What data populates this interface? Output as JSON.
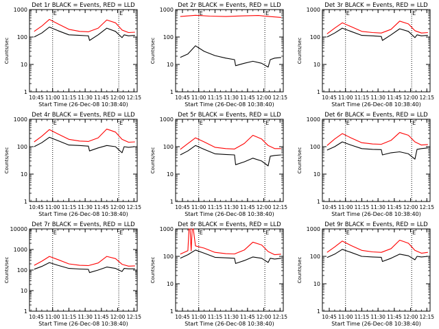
{
  "chart_data": [
    {
      "type": "line",
      "title": "Det 1r BLACK = Events, RED = LLD",
      "ylabel": "Counts/sec",
      "xlabel": "Start Time (26-Dec-08 10:38:40)",
      "x_ticks": [
        "10:45",
        "11:00",
        "11:15",
        "11:30",
        "11:45",
        "12:00",
        "12:15"
      ],
      "y_ticks": [
        "1",
        "10",
        "100",
        "1000"
      ],
      "yscale": "log",
      "ylim": [
        1,
        1000
      ],
      "xlim": [
        "10:38:40",
        "12:18"
      ],
      "markers": [
        "11:00",
        "12:01"
      ],
      "marker_labels": [
        "E",
        "E"
      ],
      "series": [
        {
          "color": "#000000",
          "x": [
            "10:43",
            "10:50",
            "10:57",
            "11:05",
            "11:15",
            "11:25",
            "11:33",
            "11:34",
            "11:42",
            "11:50",
            "11:58",
            "12:04",
            "12:06",
            "12:10",
            "12:16"
          ],
          "values": [
            100,
            140,
            230,
            170,
            120,
            115,
            110,
            75,
            120,
            210,
            160,
            95,
            120,
            110,
            115
          ]
        },
        {
          "color": "#ff0000",
          "x": [
            "10:43",
            "10:50",
            "10:57",
            "11:05",
            "11:15",
            "11:25",
            "11:33",
            "11:42",
            "11:50",
            "11:58",
            "12:04",
            "12:10",
            "12:16"
          ],
          "values": [
            160,
            250,
            440,
            300,
            190,
            160,
            155,
            210,
            420,
            330,
            180,
            145,
            150
          ]
        }
      ]
    },
    {
      "type": "line",
      "title": "Det 2r BLACK = Events, RED = LLD",
      "ylabel": "Counts/sec",
      "xlabel": "Start Time (26-Dec-08 10:38:40)",
      "x_ticks": [
        "10:45",
        "11:00",
        "11:15",
        "11:30",
        "11:45",
        "12:00",
        "12:15"
      ],
      "y_ticks": [
        "1",
        "10",
        "100",
        "1000"
      ],
      "yscale": "log",
      "ylim": [
        1,
        1000
      ],
      "xlim": [
        "10:38:40",
        "12:18"
      ],
      "markers": [
        "11:00",
        "12:01"
      ],
      "marker_labels": [
        "E",
        "E"
      ],
      "series": [
        {
          "color": "#000000",
          "x": [
            "10:43",
            "10:50",
            "10:57",
            "11:05",
            "11:15",
            "11:25",
            "11:33",
            "11:34",
            "11:42",
            "11:50",
            "11:58",
            "12:04",
            "12:06",
            "12:10",
            "12:16"
          ],
          "values": [
            18,
            24,
            48,
            30,
            21,
            17,
            15,
            9,
            11,
            13,
            11,
            8,
            15,
            17,
            18
          ]
        },
        {
          "color": "#ff0000",
          "x": [
            "10:43",
            "10:57",
            "11:10",
            "11:25",
            "11:40",
            "11:55",
            "12:05",
            "12:16"
          ],
          "values": [
            560,
            620,
            580,
            560,
            590,
            610,
            560,
            520
          ]
        }
      ]
    },
    {
      "type": "line",
      "title": "Det 3r BLACK = Events, RED = LLD",
      "ylabel": "Counts/sec",
      "xlabel": "Start Time (26-Dec-08 10:38:40)",
      "x_ticks": [
        "10:45",
        "11:00",
        "11:15",
        "11:30",
        "11:45",
        "12:00",
        "12:15"
      ],
      "y_ticks": [
        "1",
        "10",
        "100",
        "1000"
      ],
      "yscale": "log",
      "ylim": [
        1,
        1000
      ],
      "xlim": [
        "10:38:40",
        "12:18"
      ],
      "markers": [
        "11:00",
        "12:01"
      ],
      "marker_labels": [
        "E",
        "E"
      ],
      "series": [
        {
          "color": "#000000",
          "x": [
            "10:43",
            "10:50",
            "10:57",
            "11:05",
            "11:15",
            "11:25",
            "11:33",
            "11:34",
            "11:42",
            "11:50",
            "11:58",
            "12:04",
            "12:06",
            "12:10",
            "12:16"
          ],
          "values": [
            100,
            140,
            210,
            160,
            115,
            110,
            105,
            75,
            120,
            200,
            160,
            95,
            120,
            110,
            115
          ]
        },
        {
          "color": "#ff0000",
          "x": [
            "10:43",
            "10:50",
            "10:57",
            "11:05",
            "11:15",
            "11:25",
            "11:33",
            "11:42",
            "11:50",
            "11:58",
            "12:04",
            "12:10",
            "12:16"
          ],
          "values": [
            130,
            210,
            330,
            240,
            160,
            145,
            140,
            190,
            380,
            300,
            170,
            140,
            145
          ]
        }
      ]
    },
    {
      "type": "line",
      "title": "Det 4r BLACK = Events, RED = LLD",
      "ylabel": "Counts/sec",
      "xlabel": "Start Time (26-Dec-08 10:38:40)",
      "x_ticks": [
        "10:45",
        "11:00",
        "11:15",
        "11:30",
        "11:45",
        "12:00",
        "12:15"
      ],
      "y_ticks": [
        "1",
        "10",
        "100",
        "1000"
      ],
      "yscale": "log",
      "ylim": [
        1,
        1000
      ],
      "xlim": [
        "10:38:40",
        "12:18"
      ],
      "markers": [
        "11:00",
        "12:01"
      ],
      "marker_labels": [
        "E",
        "E"
      ],
      "series": [
        {
          "color": "#000000",
          "x": [
            "10:43",
            "10:50",
            "10:57",
            "11:05",
            "11:15",
            "11:25",
            "11:33",
            "11:34",
            "11:42",
            "11:50",
            "11:58",
            "12:04",
            "12:06",
            "12:10",
            "12:16"
          ],
          "values": [
            100,
            140,
            220,
            165,
            115,
            110,
            105,
            70,
            90,
            110,
            100,
            60,
            100,
            95,
            100
          ]
        },
        {
          "color": "#ff0000",
          "x": [
            "10:43",
            "10:50",
            "10:57",
            "11:05",
            "11:15",
            "11:25",
            "11:33",
            "11:42",
            "11:50",
            "11:58",
            "12:04",
            "12:10",
            "12:16"
          ],
          "values": [
            150,
            240,
            420,
            290,
            185,
            160,
            155,
            210,
            440,
            340,
            185,
            145,
            150
          ]
        }
      ]
    },
    {
      "type": "line",
      "title": "Det 5r BLACK = Events, RED = LLD",
      "ylabel": "Counts/sec",
      "xlabel": "Start Time (26-Dec-08 10:38:40)",
      "x_ticks": [
        "10:45",
        "11:00",
        "11:15",
        "11:30",
        "11:45",
        "12:00",
        "12:15"
      ],
      "y_ticks": [
        "1",
        "10",
        "100",
        "1000"
      ],
      "yscale": "log",
      "ylim": [
        1,
        1000
      ],
      "xlim": [
        "10:38:40",
        "12:18"
      ],
      "markers": [
        "11:00",
        "12:01"
      ],
      "marker_labels": [
        "E",
        "E"
      ],
      "series": [
        {
          "color": "#000000",
          "x": [
            "10:43",
            "10:50",
            "10:57",
            "11:05",
            "11:15",
            "11:25",
            "11:33",
            "11:34",
            "11:42",
            "11:50",
            "11:58",
            "12:04",
            "12:06",
            "12:10",
            "12:16"
          ],
          "values": [
            50,
            70,
            110,
            80,
            55,
            52,
            50,
            22,
            28,
            38,
            30,
            20,
            45,
            48,
            50
          ]
        },
        {
          "color": "#ff0000",
          "x": [
            "10:43",
            "10:50",
            "10:57",
            "11:05",
            "11:15",
            "11:25",
            "11:33",
            "11:42",
            "11:50",
            "11:58",
            "12:04",
            "12:10",
            "12:16"
          ],
          "values": [
            80,
            130,
            210,
            150,
            95,
            85,
            82,
            130,
            260,
            190,
            110,
            85,
            85
          ]
        }
      ]
    },
    {
      "type": "line",
      "title": "Det 6r BLACK = Events, RED = LLD",
      "ylabel": "Counts/sec",
      "xlabel": "Start Time (26-Dec-08 10:38:40)",
      "x_ticks": [
        "10:45",
        "11:00",
        "11:15",
        "11:30",
        "11:45",
        "12:00",
        "12:15"
      ],
      "y_ticks": [
        "1",
        "10",
        "100",
        "1000"
      ],
      "yscale": "log",
      "ylim": [
        1,
        1000
      ],
      "xlim": [
        "10:38:40",
        "12:18"
      ],
      "markers": [
        "11:00",
        "12:01"
      ],
      "marker_labels": [
        "E",
        "E"
      ],
      "series": [
        {
          "color": "#000000",
          "x": [
            "10:43",
            "10:50",
            "10:57",
            "11:05",
            "11:15",
            "11:25",
            "11:33",
            "11:34",
            "11:42",
            "11:50",
            "11:58",
            "12:04",
            "12:06",
            "12:10",
            "12:16"
          ],
          "values": [
            75,
            100,
            150,
            115,
            85,
            80,
            78,
            50,
            60,
            65,
            55,
            35,
            80,
            85,
            90
          ]
        },
        {
          "color": "#ff0000",
          "x": [
            "10:43",
            "10:50",
            "10:57",
            "11:05",
            "11:15",
            "11:25",
            "11:33",
            "11:42",
            "11:50",
            "11:58",
            "12:04",
            "12:10",
            "12:16"
          ],
          "values": [
            110,
            190,
            300,
            210,
            140,
            125,
            122,
            170,
            330,
            260,
            150,
            115,
            120
          ]
        }
      ]
    },
    {
      "type": "line",
      "title": "Det 7r BLACK = Events, RED = LLD",
      "ylabel": "Counts/sec",
      "xlabel": "Start Time (26-Dec-08 10:38:40)",
      "x_ticks": [
        "10:45",
        "11:00",
        "11:15",
        "11:30",
        "11:45",
        "12:00",
        "12:15"
      ],
      "y_ticks": [
        "1",
        "10",
        "100",
        "1000",
        "10000"
      ],
      "yscale": "log",
      "ylim": [
        1,
        10000
      ],
      "xlim": [
        "10:38:40",
        "12:18"
      ],
      "markers": [
        "11:00",
        "12:01"
      ],
      "marker_labels": [
        "E",
        "E"
      ],
      "series": [
        {
          "color": "#000000",
          "x": [
            "10:43",
            "10:50",
            "10:57",
            "11:05",
            "11:15",
            "11:25",
            "11:33",
            "11:34",
            "11:42",
            "11:50",
            "11:58",
            "12:04",
            "12:06",
            "12:10",
            "12:16"
          ],
          "values": [
            110,
            150,
            230,
            170,
            120,
            112,
            108,
            75,
            100,
            140,
            120,
            85,
            120,
            115,
            115
          ]
        },
        {
          "color": "#ff0000",
          "x": [
            "10:43",
            "10:50",
            "10:57",
            "11:05",
            "11:15",
            "11:25",
            "11:33",
            "11:42",
            "11:50",
            "11:58",
            "12:04",
            "12:10",
            "12:16"
          ],
          "values": [
            170,
            270,
            460,
            320,
            200,
            170,
            165,
            220,
            460,
            360,
            190,
            155,
            160
          ]
        }
      ]
    },
    {
      "type": "line",
      "title": "Det 8r BLACK = Events, RED = LLD",
      "ylabel": "Counts/sec",
      "xlabel": "Start Time (26-Dec-08 10:38:40)",
      "x_ticks": [
        "10:45",
        "11:00",
        "11:15",
        "11:30",
        "11:45",
        "12:00",
        "12:15"
      ],
      "y_ticks": [
        "1",
        "10",
        "100",
        "1000"
      ],
      "yscale": "log",
      "ylim": [
        1,
        1000
      ],
      "xlim": [
        "10:38:40",
        "12:18"
      ],
      "markers": [
        "11:00",
        "12:01"
      ],
      "marker_labels": [
        "E",
        "E"
      ],
      "series": [
        {
          "color": "#000000",
          "x": [
            "10:43",
            "10:50",
            "10:57",
            "11:05",
            "11:15",
            "11:25",
            "11:33",
            "11:34",
            "11:42",
            "11:50",
            "11:58",
            "12:04",
            "12:06",
            "12:10",
            "12:16"
          ],
          "values": [
            85,
            115,
            170,
            130,
            92,
            88,
            85,
            55,
            70,
            95,
            85,
            60,
            85,
            80,
            85
          ]
        },
        {
          "color": "#ff0000",
          "x": [
            "10:43",
            "10:50",
            "10:51",
            "10:52",
            "10:53",
            "10:54",
            "10:55",
            "10:57",
            "11:05",
            "11:15",
            "11:25",
            "11:33",
            "11:42",
            "11:50",
            "11:58",
            "12:04",
            "12:10",
            "12:16"
          ],
          "values": [
            120,
            160,
            1000,
            1000,
            160,
            1000,
            1000,
            240,
            200,
            140,
            125,
            122,
            170,
            330,
            260,
            150,
            115,
            120
          ]
        }
      ]
    },
    {
      "type": "line",
      "title": "Det 9r BLACK = Events, RED = LLD",
      "ylabel": "Counts/sec",
      "xlabel": "Start Time (26-Dec-08 10:38:40)",
      "x_ticks": [
        "10:45",
        "11:00",
        "11:15",
        "11:30",
        "11:45",
        "12:00",
        "12:15"
      ],
      "y_ticks": [
        "1",
        "10",
        "100",
        "1000"
      ],
      "yscale": "log",
      "ylim": [
        1,
        1000
      ],
      "xlim": [
        "10:38:40",
        "12:18"
      ],
      "markers": [
        "11:00",
        "12:01"
      ],
      "marker_labels": [
        "E",
        "E"
      ],
      "series": [
        {
          "color": "#000000",
          "x": [
            "10:43",
            "10:50",
            "10:57",
            "11:05",
            "11:15",
            "11:25",
            "11:33",
            "11:34",
            "11:42",
            "11:50",
            "11:58",
            "12:04",
            "12:06",
            "12:10",
            "12:16"
          ],
          "values": [
            90,
            120,
            180,
            140,
            100,
            95,
            92,
            65,
            85,
            120,
            105,
            75,
            100,
            95,
            100
          ]
        },
        {
          "color": "#ff0000",
          "x": [
            "10:43",
            "10:50",
            "10:57",
            "11:05",
            "11:15",
            "11:25",
            "11:33",
            "11:42",
            "11:50",
            "11:58",
            "12:04",
            "12:10",
            "12:16"
          ],
          "values": [
            140,
            220,
            360,
            250,
            165,
            145,
            140,
            190,
            390,
            300,
            165,
            130,
            140
          ]
        }
      ]
    }
  ]
}
